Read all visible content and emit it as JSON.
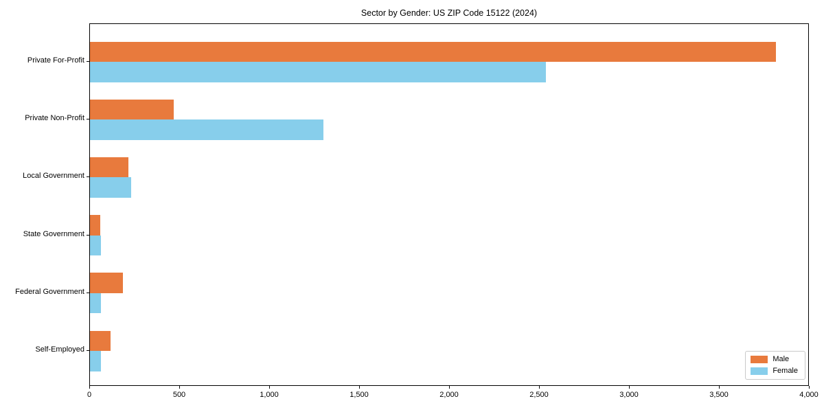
{
  "title": "Sector by Gender: US ZIP Code 15122 (2024)",
  "colors": {
    "male": "#e87a3d",
    "female": "#87ceeb",
    "axis": "#000000",
    "background": "#ffffff",
    "legend_border": "#c9c9c9"
  },
  "legend": {
    "position": "lower right",
    "items": [
      {
        "label": "Male",
        "color": "#e87a3d"
      },
      {
        "label": "Female",
        "color": "#87ceeb"
      }
    ]
  },
  "chart_data": {
    "type": "bar",
    "orientation": "horizontal",
    "title": "Sector by Gender: US ZIP Code 15122 (2024)",
    "categories": [
      "Private For-Profit",
      "Private Non-Profit",
      "Local Government",
      "State Government",
      "Federal Government",
      "Self-Employed"
    ],
    "series": [
      {
        "name": "Male",
        "color": "#e87a3d",
        "values": [
          3820,
          465,
          215,
          57,
          183,
          113
        ]
      },
      {
        "name": "Female",
        "color": "#87ceeb",
        "values": [
          2540,
          1300,
          230,
          60,
          60,
          63
        ]
      }
    ],
    "xlabel": "",
    "ylabel": "",
    "xlim": [
      0,
      4000
    ],
    "xticks": [
      0,
      500,
      1000,
      1500,
      2000,
      2500,
      3000,
      3500,
      4000
    ],
    "xtick_labels": [
      "0",
      "500",
      "1,000",
      "1,500",
      "2,000",
      "2,500",
      "3,000",
      "3,500",
      "4,000"
    ],
    "grid": false,
    "legend_position": "lower right"
  }
}
